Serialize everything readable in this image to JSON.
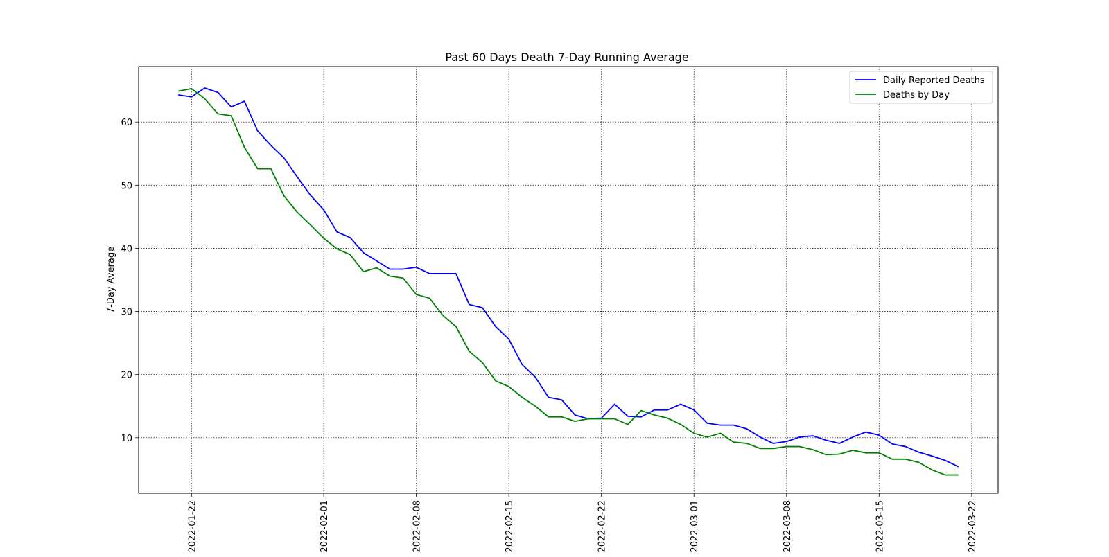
{
  "chart_data": {
    "type": "line",
    "title": "Past 60 Days Death 7-Day Running Average",
    "xlabel": "",
    "ylabel": "7-Day Average",
    "grid": true,
    "legend_position": "top-right",
    "x_start_date": "2022-01-21",
    "xlim": [
      "2022-01-18",
      "2022-03-24"
    ],
    "ylim": [
      1.2,
      68.8
    ],
    "x_ticks": [
      "2022-01-22",
      "2022-02-01",
      "2022-02-08",
      "2022-02-15",
      "2022-02-22",
      "2022-03-01",
      "2022-03-08",
      "2022-03-15",
      "2022-03-22"
    ],
    "y_ticks": [
      10,
      20,
      30,
      40,
      50,
      60
    ],
    "series": [
      {
        "name": "Daily Reported Deaths",
        "color": "#0000ff",
        "values": [
          64.3,
          64.0,
          65.4,
          64.7,
          62.4,
          63.3,
          58.6,
          56.3,
          54.3,
          51.3,
          48.4,
          46.1,
          42.6,
          41.7,
          39.3,
          38.0,
          36.7,
          36.7,
          37.0,
          36.0,
          36.0,
          36.0,
          31.1,
          30.6,
          27.6,
          25.6,
          21.6,
          19.6,
          16.4,
          16.0,
          13.6,
          13.0,
          13.1,
          15.3,
          13.4,
          13.3,
          14.4,
          14.4,
          15.3,
          14.4,
          12.3,
          12.0,
          12.0,
          11.4,
          10.1,
          9.1,
          9.4,
          10.1,
          10.3,
          9.6,
          9.1,
          10.1,
          10.9,
          10.4,
          9.0,
          8.6,
          7.7,
          7.1,
          6.4,
          5.4
        ]
      },
      {
        "name": "Deaths by Day",
        "color": "#008000",
        "values": [
          64.9,
          65.3,
          63.7,
          61.3,
          61.0,
          56.0,
          52.6,
          52.6,
          48.3,
          45.7,
          43.7,
          41.6,
          39.9,
          39.0,
          36.3,
          36.9,
          35.6,
          35.3,
          32.7,
          32.1,
          29.4,
          27.6,
          23.7,
          21.9,
          19.0,
          18.1,
          16.4,
          15.0,
          13.3,
          13.3,
          12.6,
          13.0,
          13.0,
          13.0,
          12.1,
          14.3,
          13.6,
          13.1,
          12.1,
          10.7,
          10.1,
          10.7,
          9.3,
          9.1,
          8.3,
          8.3,
          8.6,
          8.6,
          8.1,
          7.3,
          7.4,
          8.0,
          7.6,
          7.6,
          6.6,
          6.6,
          6.1,
          4.9,
          4.1,
          4.1
        ]
      }
    ]
  }
}
